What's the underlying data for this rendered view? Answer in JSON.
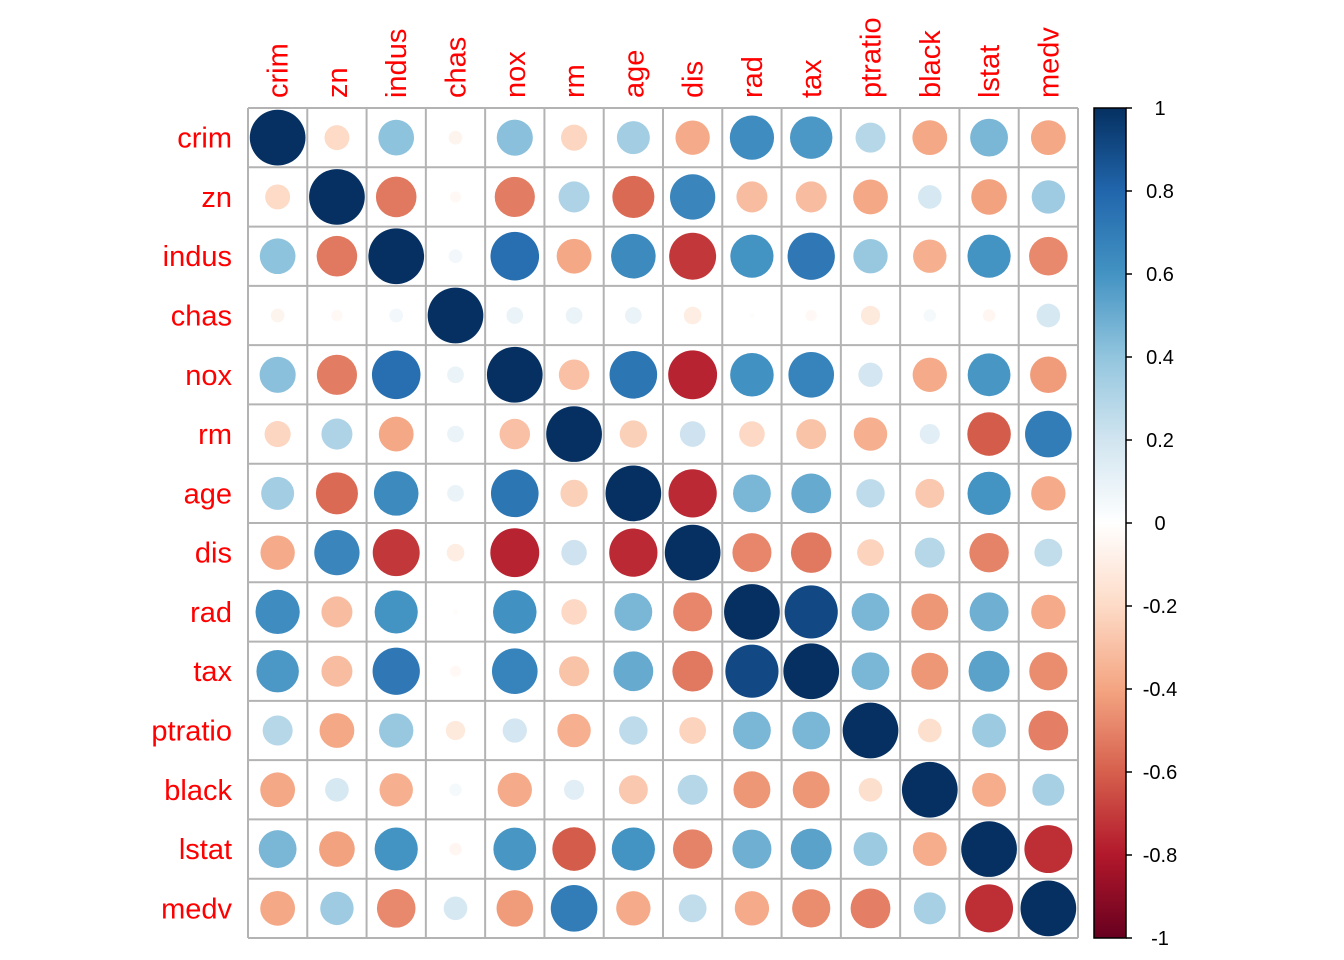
{
  "chart_data": {
    "type": "heatmap",
    "subtype": "correlation-circle",
    "title": "",
    "variables": [
      "crim",
      "zn",
      "indus",
      "chas",
      "nox",
      "rm",
      "age",
      "dis",
      "rad",
      "tax",
      "ptratio",
      "black",
      "lstat",
      "medv"
    ],
    "matrix": [
      [
        1.0,
        -0.2,
        0.41,
        -0.06,
        0.42,
        -0.22,
        0.35,
        -0.38,
        0.63,
        0.58,
        0.29,
        -0.39,
        0.46,
        -0.39
      ],
      [
        -0.2,
        1.0,
        -0.53,
        -0.04,
        -0.52,
        0.31,
        -0.57,
        0.66,
        -0.31,
        -0.31,
        -0.39,
        0.18,
        -0.41,
        0.36
      ],
      [
        0.41,
        -0.53,
        1.0,
        0.06,
        0.76,
        -0.39,
        0.64,
        -0.71,
        0.6,
        0.72,
        0.38,
        -0.36,
        0.6,
        -0.48
      ],
      [
        -0.06,
        -0.04,
        0.06,
        1.0,
        0.09,
        0.09,
        0.09,
        -0.1,
        -0.01,
        -0.04,
        -0.12,
        0.05,
        -0.05,
        0.18
      ],
      [
        0.42,
        -0.52,
        0.76,
        0.09,
        1.0,
        -0.3,
        0.73,
        -0.77,
        0.61,
        0.67,
        0.19,
        -0.38,
        0.59,
        -0.43
      ],
      [
        -0.22,
        0.31,
        -0.39,
        0.09,
        -0.3,
        1.0,
        -0.24,
        0.21,
        -0.21,
        -0.29,
        -0.36,
        0.13,
        -0.61,
        0.7
      ],
      [
        0.35,
        -0.57,
        0.64,
        0.09,
        0.73,
        -0.24,
        1.0,
        -0.75,
        0.46,
        0.51,
        0.26,
        -0.27,
        0.6,
        -0.38
      ],
      [
        -0.38,
        0.66,
        -0.71,
        -0.1,
        -0.77,
        0.21,
        -0.75,
        1.0,
        -0.49,
        -0.53,
        -0.23,
        0.29,
        -0.5,
        0.25
      ],
      [
        0.63,
        -0.31,
        0.6,
        -0.01,
        0.61,
        -0.21,
        0.46,
        -0.49,
        1.0,
        0.91,
        0.46,
        -0.44,
        0.49,
        -0.38
      ],
      [
        0.58,
        -0.31,
        0.72,
        -0.04,
        0.67,
        -0.29,
        0.51,
        -0.53,
        0.91,
        1.0,
        0.46,
        -0.44,
        0.54,
        -0.47
      ],
      [
        0.29,
        -0.39,
        0.38,
        -0.12,
        0.19,
        -0.36,
        0.26,
        -0.23,
        0.46,
        0.46,
        1.0,
        -0.18,
        0.37,
        -0.51
      ],
      [
        -0.39,
        0.18,
        -0.36,
        0.05,
        -0.38,
        0.13,
        -0.27,
        0.29,
        -0.44,
        -0.44,
        -0.18,
        1.0,
        -0.37,
        0.33
      ],
      [
        0.46,
        -0.41,
        0.6,
        -0.05,
        0.59,
        -0.61,
        0.6,
        -0.5,
        0.49,
        0.54,
        0.37,
        -0.37,
        1.0,
        -0.74
      ],
      [
        -0.39,
        0.36,
        -0.48,
        0.18,
        -0.43,
        0.7,
        -0.38,
        0.25,
        -0.38,
        -0.47,
        -0.51,
        0.33,
        -0.74,
        1.0
      ]
    ],
    "colorbar": {
      "range": [
        -1,
        1
      ],
      "ticks": [
        "1",
        "0.8",
        "0.6",
        "0.4",
        "0.2",
        "0",
        "-0.2",
        "-0.4",
        "-0.6",
        "-0.8",
        "-1"
      ],
      "tick_values": [
        1,
        0.8,
        0.6,
        0.4,
        0.2,
        0,
        -0.2,
        -0.4,
        -0.6,
        -0.8,
        -1
      ],
      "placement": "right",
      "palette": [
        "#67001F",
        "#B2182B",
        "#D6604D",
        "#F4A582",
        "#FDDBC7",
        "#FFFFFF",
        "#D1E5F0",
        "#92C5DE",
        "#4393C3",
        "#2166AC",
        "#053061"
      ]
    },
    "label_color": "#ff0000",
    "grid": true
  }
}
